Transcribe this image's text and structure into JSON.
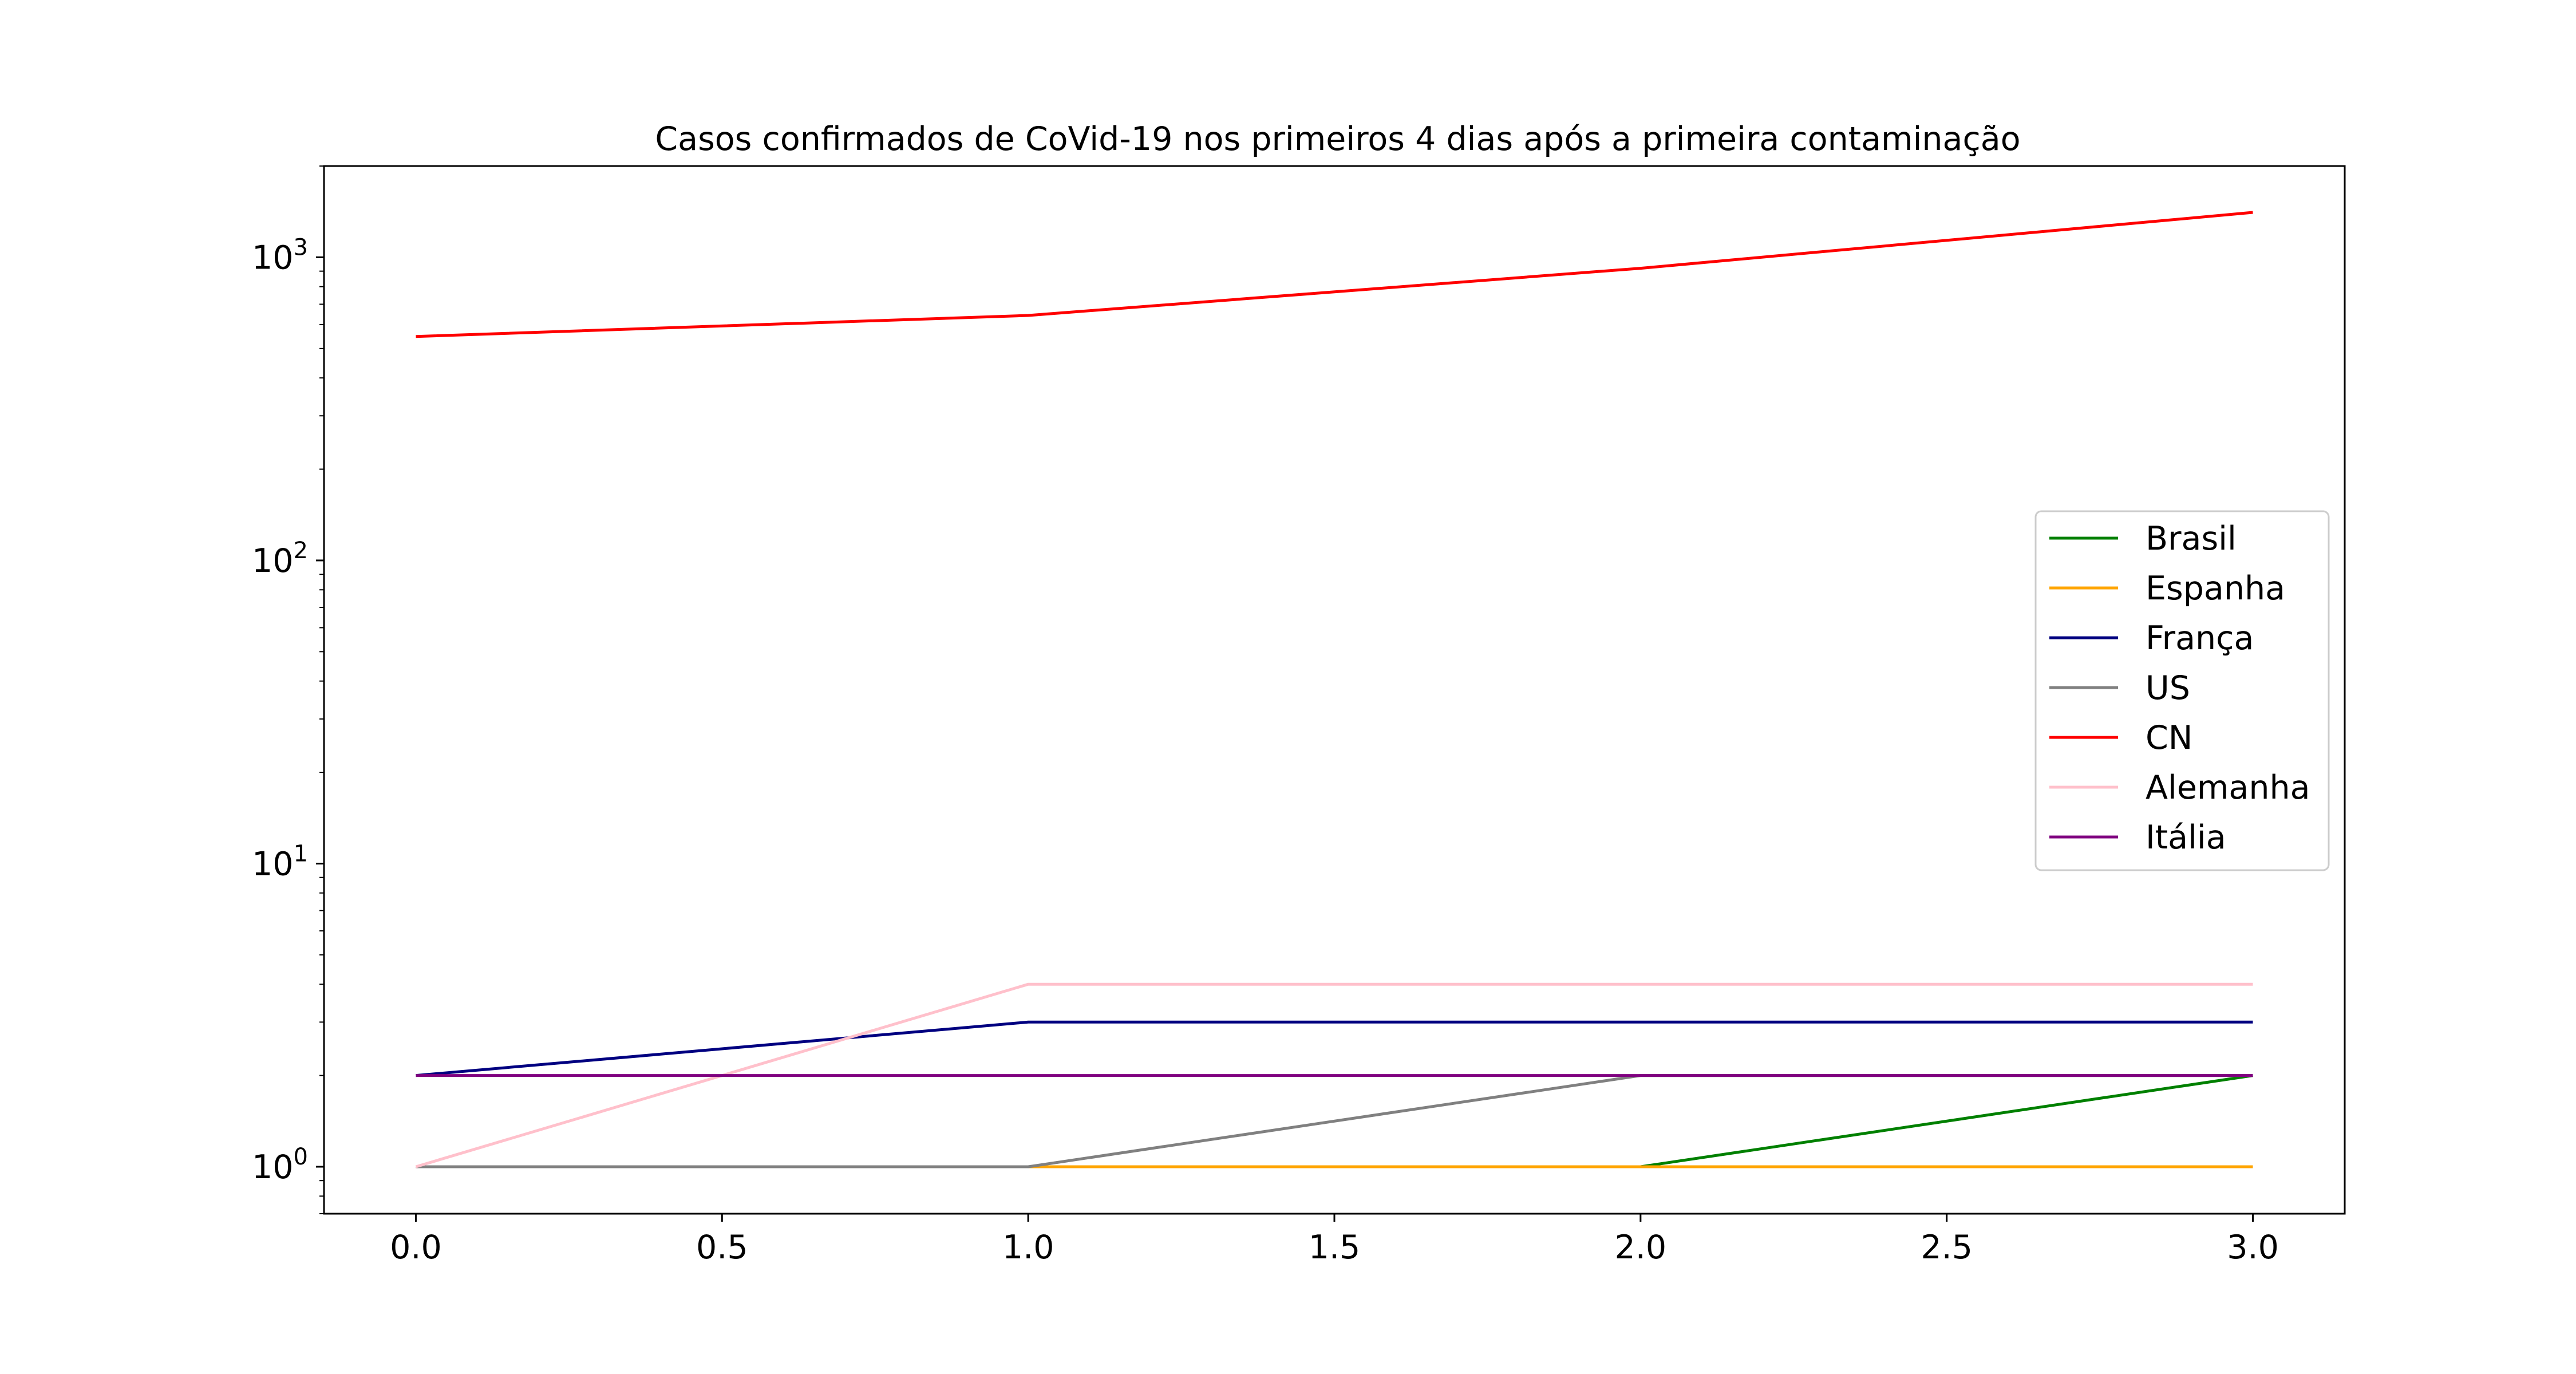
{
  "chart_data": {
    "type": "line",
    "title": "Casos confirmados de CoVid-19 nos primeiros 4 dias após a primeira contaminação",
    "xlabel": "",
    "ylabel": "",
    "x": [
      0,
      1,
      2,
      3
    ],
    "xlim": [
      -0.15,
      3.15
    ],
    "ylim": [
      0.7,
      2000
    ],
    "yscale": "log",
    "x_ticks": [
      "0.0",
      "0.5",
      "1.0",
      "1.5",
      "2.0",
      "2.5",
      "3.0"
    ],
    "y_ticks": [
      {
        "base": "10",
        "exp": "0"
      },
      {
        "base": "10",
        "exp": "1"
      },
      {
        "base": "10",
        "exp": "2"
      },
      {
        "base": "10",
        "exp": "3"
      }
    ],
    "grid": false,
    "legend_position": "center-right",
    "series": [
      {
        "name": "Brasil",
        "color": "#008000",
        "values": [
          1,
          1,
          1,
          2
        ]
      },
      {
        "name": "Espanha",
        "color": "#ffa500",
        "values": [
          1,
          1,
          1,
          1
        ]
      },
      {
        "name": "França",
        "color": "#000080",
        "values": [
          2,
          3,
          3,
          3
        ]
      },
      {
        "name": "US",
        "color": "#808080",
        "values": [
          1,
          1,
          2,
          2
        ]
      },
      {
        "name": "CN",
        "color": "#ff0000",
        "values": [
          548,
          643,
          920,
          1406
        ]
      },
      {
        "name": "Alemanha",
        "color": "#ffc0cb",
        "values": [
          1,
          4,
          4,
          4
        ]
      },
      {
        "name": "Itália",
        "color": "#800080",
        "values": [
          2,
          2,
          2,
          2
        ]
      }
    ]
  }
}
